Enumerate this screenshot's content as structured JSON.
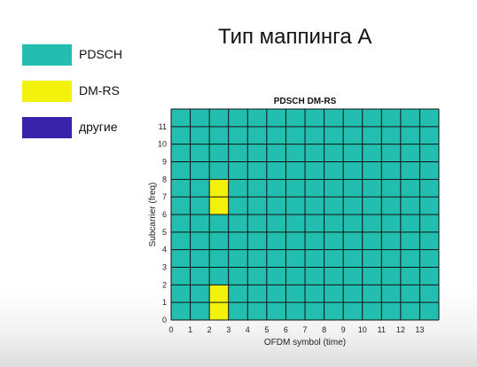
{
  "slide": {
    "title": "Тип маппинга А"
  },
  "legend": [
    {
      "label": "PDSCH",
      "color": "#22bfb1"
    },
    {
      "label": "DM-RS",
      "color": "#f2f20c"
    },
    {
      "label": "другие",
      "color": "#3a22aa"
    }
  ],
  "chart_data": {
    "type": "heatmap",
    "title": "PDSCH DM-RS",
    "xlabel": "OFDM symbol (time)",
    "ylabel": "Subcarrier (freq)",
    "x_ticks": [
      "0",
      "1",
      "2",
      "3",
      "4",
      "5",
      "6",
      "7",
      "8",
      "9",
      "10",
      "11",
      "12",
      "13"
    ],
    "y_ticks": [
      "0",
      "1",
      "2",
      "3",
      "4",
      "5",
      "6",
      "7",
      "8",
      "9",
      "10",
      "11"
    ],
    "xlim": [
      0,
      14
    ],
    "ylim": [
      0,
      12
    ],
    "grid": true,
    "colors": {
      "PDSCH": "#22bfb1",
      "DM-RS": "#f2f20c",
      "other": "#3a22aa",
      "gridline": "#111111"
    },
    "default_value": "PDSCH",
    "cells": [
      {
        "symbol": 2,
        "subcarrier": 0,
        "value": "DM-RS"
      },
      {
        "symbol": 2,
        "subcarrier": 1,
        "value": "DM-RS"
      },
      {
        "symbol": 2,
        "subcarrier": 6,
        "value": "DM-RS"
      },
      {
        "symbol": 2,
        "subcarrier": 7,
        "value": "DM-RS"
      }
    ]
  }
}
